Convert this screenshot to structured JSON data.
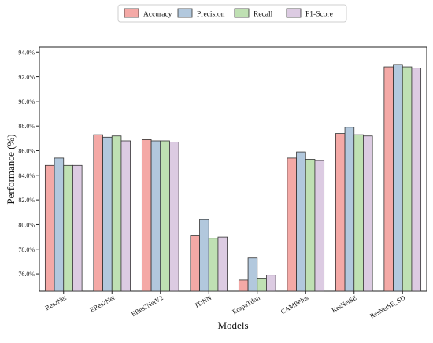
{
  "chart_data": {
    "type": "bar",
    "title": "",
    "xlabel": "Models",
    "ylabel": "Performance (%)",
    "ylim": [
      74.6,
      94.4
    ],
    "yticks": [
      76.0,
      78.0,
      80.0,
      82.0,
      84.0,
      86.0,
      88.0,
      90.0,
      92.0,
      94.0
    ],
    "ytick_labels": [
      "76.0%",
      "78.0%",
      "80.0%",
      "82.0%",
      "84.0%",
      "86.0%",
      "88.0%",
      "90.0%",
      "92.0%",
      "94.0%"
    ],
    "categories": [
      "Res2Net",
      "ERes2Net",
      "ERes2NetV2",
      "TDNN",
      "EcapaTdnn",
      "CAMPPlus",
      "ResNetSE",
      "ResNetSE_SD"
    ],
    "series": [
      {
        "name": "Accuracy",
        "color": "#f4a9a6",
        "values": [
          84.8,
          87.3,
          86.9,
          79.1,
          75.5,
          85.4,
          87.4,
          92.8
        ]
      },
      {
        "name": "Precision",
        "color": "#b2c8dd",
        "values": [
          85.4,
          87.1,
          86.8,
          80.4,
          77.3,
          85.9,
          87.9,
          93.0
        ]
      },
      {
        "name": "Recall",
        "color": "#bfe0b3",
        "values": [
          84.8,
          87.2,
          86.8,
          78.9,
          75.6,
          85.3,
          87.3,
          92.8
        ]
      },
      {
        "name": "F1-Score",
        "color": "#dccbe2",
        "values": [
          84.8,
          86.8,
          86.7,
          79.0,
          75.9,
          85.2,
          87.2,
          92.7
        ]
      }
    ],
    "legend_position": "top-center",
    "grid": false
  }
}
